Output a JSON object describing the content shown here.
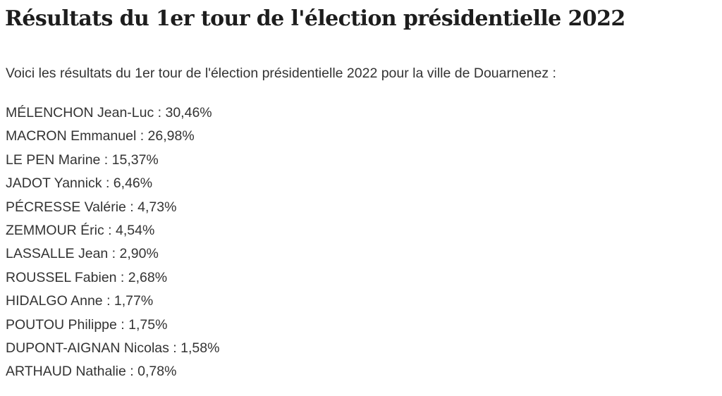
{
  "article": {
    "title": "Résultats du 1er tour de l'élection présidentielle 2022",
    "intro": "Voici les résultats du 1er tour de l'élection présidentielle 2022 pour la ville de Douarnenez :",
    "results": [
      "MÉLENCHON Jean-Luc : 30,46%",
      "MACRON Emmanuel : 26,98%",
      "LE PEN Marine : 15,37%",
      "JADOT Yannick : 6,46%",
      "PÉCRESSE Valérie : 4,73%",
      "ZEMMOUR Éric : 4,54%",
      "LASSALLE Jean : 2,90%",
      "ROUSSEL Fabien : 2,68%",
      "HIDALGO Anne : 1,77%",
      "POUTOU Philippe : 1,75%",
      "DUPONT-AIGNAN Nicolas : 1,58%",
      "ARTHAUD Nathalie : 0,78%"
    ]
  }
}
